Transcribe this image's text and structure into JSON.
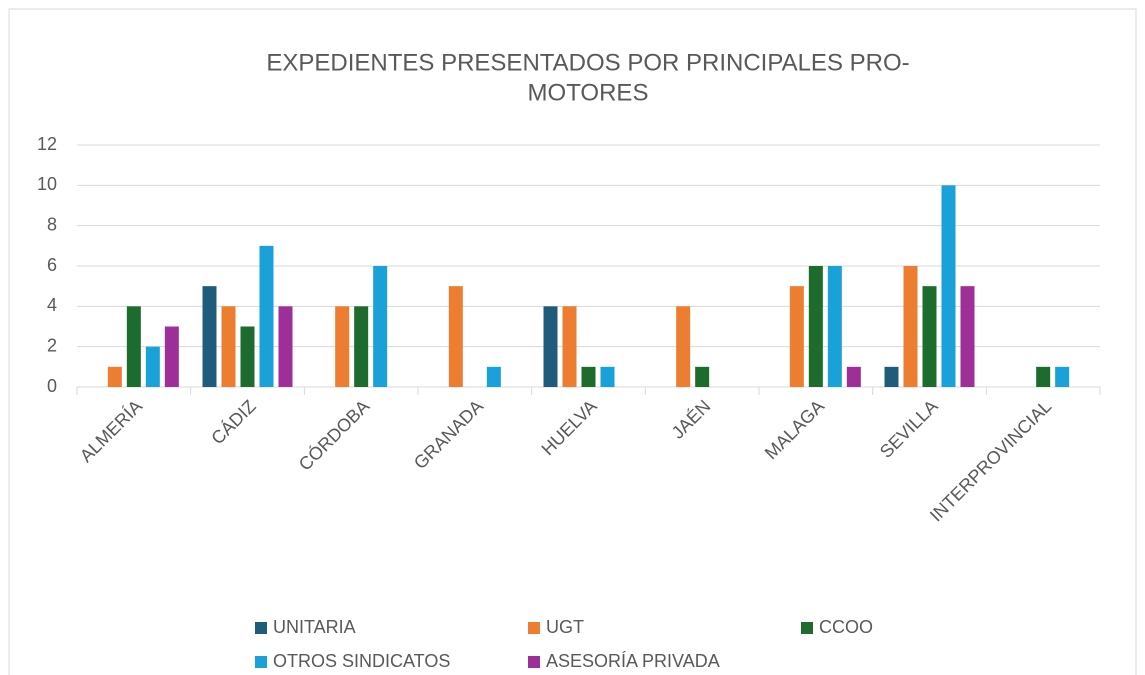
{
  "chart_data": {
    "type": "bar",
    "title": [
      "EXPEDIENTES PRESENTADOS POR PRINCIPALES PRO-",
      "MOTORES"
    ],
    "categories": [
      "ALMERÍA",
      "CÁDIZ",
      "CÓRDOBA",
      "GRANADA",
      "HUELVA",
      "JAÉN",
      "MALAGA",
      "SEVILLA",
      "INTERPROVINCIAL"
    ],
    "series": [
      {
        "name": "UNITARIA",
        "color": "#1f5c7c",
        "values": [
          0,
          5,
          0,
          0,
          4,
          0,
          0,
          1,
          0
        ]
      },
      {
        "name": "UGT",
        "color": "#ed7d31",
        "values": [
          1,
          4,
          4,
          5,
          4,
          4,
          5,
          6,
          0
        ]
      },
      {
        "name": "CCOO",
        "color": "#1e6b2e",
        "values": [
          4,
          3,
          4,
          0,
          1,
          1,
          6,
          5,
          1
        ]
      },
      {
        "name": "OTROS SINDICATOS",
        "color": "#1ba1d9",
        "values": [
          2,
          7,
          6,
          1,
          1,
          0,
          6,
          10,
          1
        ]
      },
      {
        "name": "ASESORÍA PRIVADA",
        "color": "#9e2f98",
        "values": [
          3,
          4,
          0,
          0,
          0,
          0,
          1,
          5,
          0
        ]
      }
    ],
    "ylim": [
      0,
      12
    ],
    "yticks": [
      0,
      2,
      4,
      6,
      8,
      10,
      12
    ],
    "grid": true,
    "legend": "bottom"
  }
}
